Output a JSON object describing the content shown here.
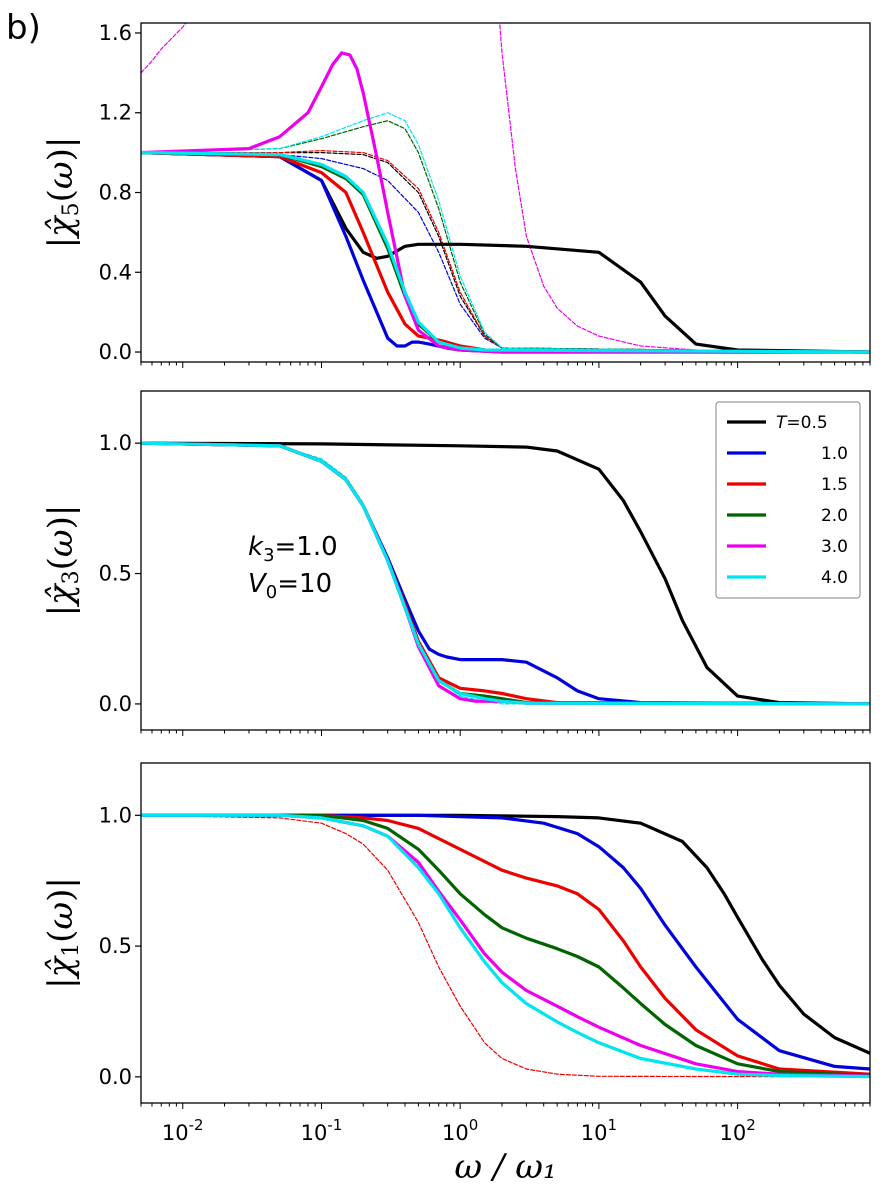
{
  "figure": {
    "panel_label": "b)",
    "xlabel": "ω / ω₁",
    "xticks": [
      {
        "base": "10",
        "exp": "-2"
      },
      {
        "base": "10",
        "exp": "-1"
      },
      {
        "base": "10",
        "exp": "0"
      },
      {
        "base": "10",
        "exp": "1"
      },
      {
        "base": "10",
        "exp": "2"
      }
    ],
    "colors": {
      "0.5": "#000000",
      "1.0": "#0000dd",
      "1.5": "#ee0000",
      "2.0": "#006400",
      "3.0": "#ee00ee",
      "4.0": "#00e5ee"
    }
  },
  "chart_data": [
    {
      "type": "line",
      "ylabel": "|χ̂5(ω)|",
      "ylabel_sub": "5",
      "xscale": "log",
      "xlim": [
        0.005,
        900
      ],
      "ylim": [
        -0.05,
        1.65
      ],
      "yticks": [
        "0.0",
        "0.4",
        "0.8",
        "1.2",
        "1.6"
      ],
      "ytick_values": [
        0,
        0.4,
        0.8,
        1.2,
        1.6
      ],
      "series": [
        {
          "T": "0.5",
          "style": "solid",
          "x": [
            0.005,
            0.05,
            0.1,
            0.15,
            0.2,
            0.25,
            0.3,
            0.4,
            0.5,
            1,
            3,
            10,
            20,
            30,
            50,
            100,
            900
          ],
          "y": [
            1.0,
            0.98,
            0.86,
            0.62,
            0.5,
            0.47,
            0.48,
            0.53,
            0.54,
            0.54,
            0.53,
            0.5,
            0.35,
            0.18,
            0.04,
            0.01,
            0.0
          ]
        },
        {
          "T": "1.0",
          "style": "solid",
          "x": [
            0.005,
            0.05,
            0.1,
            0.15,
            0.2,
            0.3,
            0.35,
            0.4,
            0.45,
            0.5,
            0.6,
            0.8,
            1,
            2,
            900
          ],
          "y": [
            1.0,
            0.98,
            0.86,
            0.58,
            0.36,
            0.07,
            0.03,
            0.03,
            0.05,
            0.05,
            0.04,
            0.02,
            0.01,
            0.0,
            0.0
          ]
        },
        {
          "T": "1.5",
          "style": "solid",
          "x": [
            0.005,
            0.05,
            0.1,
            0.15,
            0.2,
            0.3,
            0.4,
            0.5,
            0.6,
            0.7,
            0.8,
            1,
            1.5,
            900
          ],
          "y": [
            1.0,
            0.98,
            0.9,
            0.8,
            0.6,
            0.3,
            0.14,
            0.08,
            0.07,
            0.06,
            0.05,
            0.03,
            0.01,
            0.0
          ]
        },
        {
          "T": "2.0",
          "style": "solid",
          "x": [
            0.005,
            0.05,
            0.1,
            0.15,
            0.2,
            0.3,
            0.4,
            0.5,
            0.7,
            1,
            1.5,
            900
          ],
          "y": [
            1.0,
            0.99,
            0.93,
            0.87,
            0.79,
            0.52,
            0.28,
            0.14,
            0.05,
            0.02,
            0.01,
            0.0
          ]
        },
        {
          "T": "3.0",
          "style": "solid",
          "x": [
            0.005,
            0.03,
            0.05,
            0.08,
            0.1,
            0.12,
            0.14,
            0.16,
            0.18,
            0.2,
            0.25,
            0.3,
            0.4,
            0.5,
            0.7,
            1,
            2,
            900
          ],
          "y": [
            1.0,
            1.02,
            1.08,
            1.2,
            1.33,
            1.44,
            1.5,
            1.49,
            1.42,
            1.3,
            0.98,
            0.7,
            0.28,
            0.11,
            0.03,
            0.01,
            0.0,
            0.0
          ]
        },
        {
          "T": "4.0",
          "style": "solid",
          "x": [
            0.005,
            0.05,
            0.1,
            0.15,
            0.2,
            0.3,
            0.4,
            0.5,
            0.7,
            1,
            1.5,
            900
          ],
          "y": [
            1.0,
            0.99,
            0.94,
            0.88,
            0.8,
            0.54,
            0.3,
            0.15,
            0.05,
            0.02,
            0.01,
            0.0
          ]
        },
        {
          "T": "0.5",
          "style": "dashed",
          "x": [
            0.005,
            0.05,
            0.1,
            0.2,
            0.3,
            0.5,
            0.7,
            1,
            1.5,
            2,
            900
          ],
          "y": [
            1.0,
            1.0,
            1.0,
            0.99,
            0.95,
            0.8,
            0.58,
            0.28,
            0.08,
            0.02,
            0.0
          ]
        },
        {
          "T": "1.0",
          "style": "dashed",
          "x": [
            0.005,
            0.05,
            0.1,
            0.2,
            0.3,
            0.5,
            0.7,
            1,
            1.5,
            2,
            900
          ],
          "y": [
            1.0,
            0.99,
            0.97,
            0.92,
            0.86,
            0.7,
            0.5,
            0.24,
            0.07,
            0.02,
            0.0
          ]
        },
        {
          "T": "1.5",
          "style": "dashed",
          "x": [
            0.005,
            0.05,
            0.1,
            0.2,
            0.3,
            0.5,
            0.7,
            1,
            1.5,
            2,
            900
          ],
          "y": [
            1.0,
            1.0,
            1.01,
            1.0,
            0.96,
            0.82,
            0.6,
            0.3,
            0.08,
            0.02,
            0.0
          ]
        },
        {
          "T": "2.0",
          "style": "dashed",
          "x": [
            0.005,
            0.05,
            0.1,
            0.2,
            0.3,
            0.4,
            0.5,
            0.7,
            1,
            1.5,
            2,
            900
          ],
          "y": [
            1.0,
            1.02,
            1.07,
            1.13,
            1.16,
            1.12,
            1.0,
            0.72,
            0.35,
            0.09,
            0.02,
            0.0
          ]
        },
        {
          "T": "3.0",
          "style": "dashed",
          "x": [
            0.005,
            0.006,
            0.007,
            0.0085,
            0.01,
            0.012
          ],
          "y": [
            1.4,
            1.46,
            1.52,
            1.58,
            1.63,
            1.7
          ]
        },
        {
          "T": "3.0",
          "style": "dashed",
          "x": [
            1.9,
            2,
            2.5,
            3,
            4,
            5,
            7,
            10,
            20,
            50,
            100,
            900
          ],
          "y": [
            1.7,
            1.5,
            0.92,
            0.58,
            0.33,
            0.22,
            0.13,
            0.08,
            0.03,
            0.01,
            0.005,
            0.0
          ]
        },
        {
          "T": "4.0",
          "style": "dashed",
          "x": [
            0.005,
            0.05,
            0.1,
            0.2,
            0.3,
            0.4,
            0.5,
            0.7,
            1,
            1.5,
            2,
            900
          ],
          "y": [
            1.0,
            1.02,
            1.08,
            1.16,
            1.2,
            1.16,
            1.04,
            0.76,
            0.38,
            0.1,
            0.02,
            0.0
          ]
        }
      ]
    },
    {
      "type": "line",
      "ylabel": "|χ̂3(ω)|",
      "ylabel_sub": "3",
      "xscale": "log",
      "xlim": [
        0.005,
        900
      ],
      "ylim": [
        -0.1,
        1.2
      ],
      "yticks": [
        "0.0",
        "0.5",
        "1.0"
      ],
      "ytick_values": [
        0,
        0.5,
        1.0
      ],
      "legend": {
        "title_prefix": "T",
        "entries": [
          "=0.5",
          "1.0",
          "1.5",
          "2.0",
          "3.0",
          "4.0"
        ],
        "placement": "top-right"
      },
      "annotations": [
        "k3=1.0",
        "V0=10"
      ],
      "series": [
        {
          "T": "0.5",
          "style": "solid",
          "x": [
            0.005,
            0.1,
            1,
            3,
            5,
            10,
            15,
            20,
            30,
            40,
            60,
            100,
            200,
            900
          ],
          "y": [
            1.0,
            0.997,
            0.99,
            0.985,
            0.97,
            0.9,
            0.78,
            0.66,
            0.48,
            0.32,
            0.14,
            0.03,
            0.005,
            0.0
          ]
        },
        {
          "T": "1.0",
          "style": "solid",
          "x": [
            0.005,
            0.05,
            0.1,
            0.15,
            0.2,
            0.3,
            0.4,
            0.5,
            0.6,
            0.7,
            0.8,
            1,
            1.5,
            2,
            3,
            5,
            7,
            10,
            20,
            900
          ],
          "y": [
            1.0,
            0.99,
            0.93,
            0.86,
            0.76,
            0.56,
            0.4,
            0.28,
            0.21,
            0.19,
            0.18,
            0.17,
            0.17,
            0.17,
            0.16,
            0.1,
            0.05,
            0.02,
            0.005,
            0.0
          ]
        },
        {
          "T": "1.5",
          "style": "solid",
          "x": [
            0.005,
            0.05,
            0.1,
            0.15,
            0.2,
            0.3,
            0.4,
            0.5,
            0.7,
            1,
            1.5,
            2,
            3,
            5,
            900
          ],
          "y": [
            1.0,
            0.99,
            0.93,
            0.86,
            0.76,
            0.55,
            0.38,
            0.24,
            0.1,
            0.06,
            0.05,
            0.04,
            0.02,
            0.005,
            0.0
          ]
        },
        {
          "T": "2.0",
          "style": "solid",
          "x": [
            0.005,
            0.05,
            0.1,
            0.15,
            0.2,
            0.3,
            0.4,
            0.5,
            0.7,
            1,
            1.5,
            2,
            3,
            900
          ],
          "y": [
            1.0,
            0.99,
            0.93,
            0.86,
            0.76,
            0.55,
            0.37,
            0.23,
            0.09,
            0.04,
            0.03,
            0.02,
            0.005,
            0.0
          ]
        },
        {
          "T": "3.0",
          "style": "solid",
          "x": [
            0.005,
            0.05,
            0.1,
            0.15,
            0.2,
            0.3,
            0.4,
            0.5,
            0.7,
            1,
            1.3,
            1.6,
            2,
            3,
            900
          ],
          "y": [
            1.0,
            0.99,
            0.93,
            0.86,
            0.76,
            0.55,
            0.37,
            0.22,
            0.07,
            0.02,
            0.01,
            0.01,
            0.01,
            0.003,
            0.0
          ]
        },
        {
          "T": "4.0",
          "style": "solid",
          "x": [
            0.005,
            0.05,
            0.1,
            0.15,
            0.2,
            0.3,
            0.4,
            0.5,
            0.7,
            1,
            1.5,
            2,
            3,
            900
          ],
          "y": [
            1.0,
            0.99,
            0.93,
            0.86,
            0.76,
            0.55,
            0.37,
            0.23,
            0.09,
            0.04,
            0.02,
            0.01,
            0.003,
            0.0
          ]
        },
        {
          "T": "4.0",
          "style": "dashed",
          "x": [
            0.005,
            0.05,
            0.1,
            0.15,
            0.2,
            0.3,
            0.4,
            0.5,
            0.7,
            1,
            1.5,
            2,
            900
          ],
          "y": [
            1.0,
            0.99,
            0.94,
            0.87,
            0.77,
            0.56,
            0.38,
            0.24,
            0.09,
            0.03,
            0.01,
            0.0,
            0.0
          ]
        }
      ]
    },
    {
      "type": "line",
      "ylabel": "|χ̂1(ω)|",
      "ylabel_sub": "1",
      "xscale": "log",
      "xlim": [
        0.005,
        900
      ],
      "ylim": [
        -0.1,
        1.2
      ],
      "yticks": [
        "0.0",
        "0.5",
        "1.0"
      ],
      "ytick_values": [
        0,
        0.5,
        1.0
      ],
      "series": [
        {
          "T": "0.5",
          "style": "solid",
          "x": [
            0.005,
            1,
            5,
            10,
            20,
            40,
            60,
            80,
            100,
            150,
            200,
            300,
            500,
            900
          ],
          "y": [
            1.0,
            1.0,
            0.995,
            0.99,
            0.97,
            0.9,
            0.8,
            0.7,
            0.61,
            0.45,
            0.35,
            0.24,
            0.15,
            0.09
          ]
        },
        {
          "T": "1.0",
          "style": "solid",
          "x": [
            0.005,
            0.5,
            1,
            2,
            4,
            7,
            10,
            15,
            20,
            30,
            50,
            100,
            200,
            500,
            900
          ],
          "y": [
            1.0,
            1.0,
            0.995,
            0.99,
            0.97,
            0.93,
            0.88,
            0.8,
            0.72,
            0.58,
            0.42,
            0.22,
            0.1,
            0.04,
            0.03
          ]
        },
        {
          "T": "1.5",
          "style": "solid",
          "x": [
            0.005,
            0.1,
            0.2,
            0.3,
            0.5,
            1,
            2,
            3,
            5,
            7,
            10,
            15,
            20,
            30,
            50,
            100,
            200,
            900
          ],
          "y": [
            1.0,
            1.0,
            0.99,
            0.98,
            0.95,
            0.87,
            0.79,
            0.76,
            0.73,
            0.7,
            0.64,
            0.52,
            0.42,
            0.3,
            0.18,
            0.08,
            0.03,
            0.01
          ]
        },
        {
          "T": "2.0",
          "style": "solid",
          "x": [
            0.005,
            0.1,
            0.2,
            0.3,
            0.5,
            0.7,
            1,
            1.5,
            2,
            3,
            5,
            7,
            10,
            15,
            20,
            30,
            50,
            100,
            200,
            900
          ],
          "y": [
            1.0,
            1.0,
            0.98,
            0.95,
            0.87,
            0.79,
            0.7,
            0.62,
            0.57,
            0.53,
            0.49,
            0.46,
            0.42,
            0.34,
            0.28,
            0.2,
            0.12,
            0.05,
            0.02,
            0.005
          ]
        },
        {
          "T": "3.0",
          "style": "solid",
          "x": [
            0.005,
            0.05,
            0.1,
            0.2,
            0.3,
            0.5,
            0.7,
            1,
            1.5,
            2,
            3,
            5,
            7,
            10,
            20,
            50,
            100,
            200,
            900
          ],
          "y": [
            1.0,
            1.0,
            0.99,
            0.96,
            0.92,
            0.82,
            0.71,
            0.6,
            0.47,
            0.4,
            0.33,
            0.27,
            0.23,
            0.19,
            0.12,
            0.05,
            0.02,
            0.01,
            0.003
          ]
        },
        {
          "T": "4.0",
          "style": "solid",
          "x": [
            0.005,
            0.05,
            0.1,
            0.2,
            0.3,
            0.5,
            0.7,
            1,
            1.5,
            2,
            3,
            5,
            7,
            10,
            20,
            50,
            100,
            200,
            900
          ],
          "y": [
            1.0,
            1.0,
            0.99,
            0.96,
            0.92,
            0.8,
            0.7,
            0.57,
            0.44,
            0.36,
            0.28,
            0.21,
            0.17,
            0.13,
            0.07,
            0.03,
            0.01,
            0.005,
            0.001
          ]
        },
        {
          "T": "1.5",
          "style": "dashed",
          "x": [
            0.005,
            0.05,
            0.1,
            0.15,
            0.2,
            0.3,
            0.5,
            0.7,
            1,
            1.5,
            2,
            3,
            5,
            10,
            900
          ],
          "y": [
            1.0,
            0.99,
            0.97,
            0.93,
            0.89,
            0.79,
            0.59,
            0.42,
            0.27,
            0.13,
            0.07,
            0.03,
            0.01,
            0.002,
            0.0
          ]
        }
      ]
    }
  ]
}
